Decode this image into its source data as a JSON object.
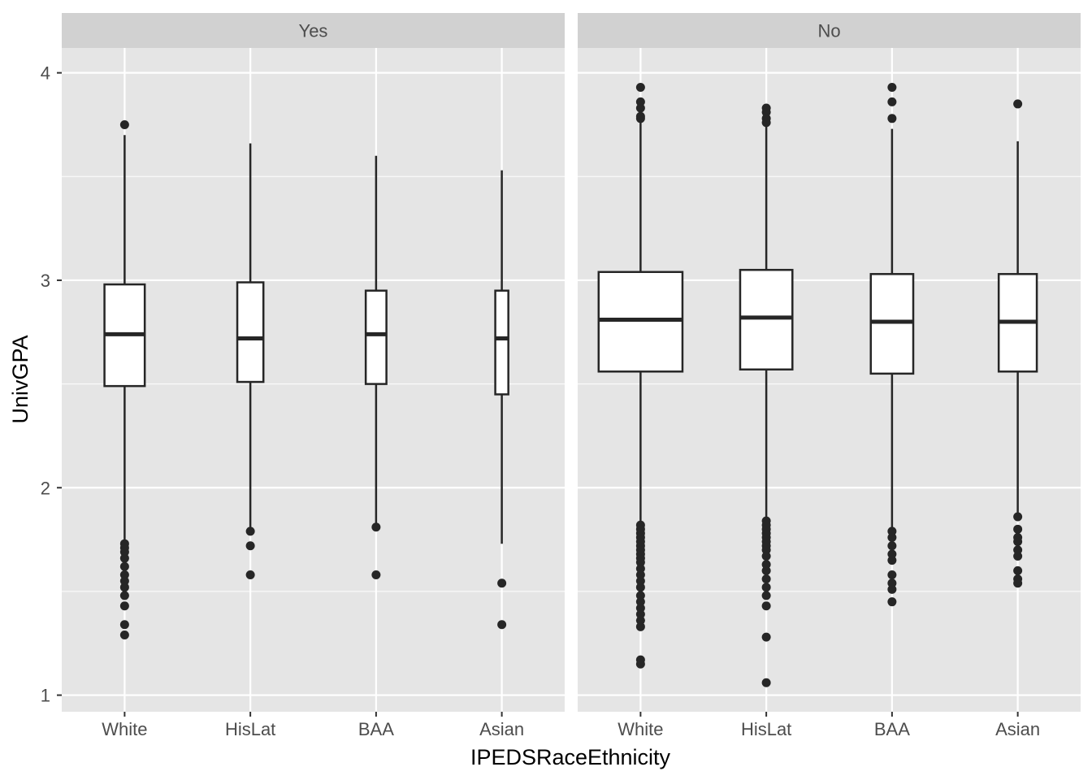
{
  "chart_data": {
    "type": "boxplot",
    "facet_variable_values": [
      "Yes",
      "No"
    ],
    "xlabel": "IPEDSRaceEthnicity",
    "ylabel": "UnivGPA",
    "categories": [
      "White",
      "HisLat",
      "BAA",
      "Asian"
    ],
    "ylim": [
      0.92,
      4.12
    ],
    "yticks": [
      1,
      2,
      3,
      4
    ],
    "grid": true,
    "colors": {
      "panel_background": "#e5e5e5",
      "strip_background": "#d1d1d1",
      "grid": "#ffffff",
      "box_fill": "#ffffff",
      "box_line": "#262626"
    },
    "panels": [
      {
        "label": "Yes",
        "boxes": [
          {
            "category": "White",
            "relative_width": 0.37,
            "whisker_low": 1.73,
            "q1": 2.49,
            "median": 2.74,
            "q3": 2.98,
            "whisker_high": 3.7,
            "outliers": [
              3.75,
              1.73,
              1.71,
              1.69,
              1.66,
              1.62,
              1.58,
              1.55,
              1.52,
              1.48,
              1.43,
              1.34,
              1.29
            ]
          },
          {
            "category": "HisLat",
            "relative_width": 0.24,
            "whisker_low": 1.8,
            "q1": 2.51,
            "median": 2.72,
            "q3": 2.99,
            "whisker_high": 3.66,
            "outliers": [
              1.79,
              1.72,
              1.58
            ]
          },
          {
            "category": "BAA",
            "relative_width": 0.19,
            "whisker_low": 1.83,
            "q1": 2.5,
            "median": 2.74,
            "q3": 2.95,
            "whisker_high": 3.6,
            "outliers": [
              1.81,
              1.58
            ]
          },
          {
            "category": "Asian",
            "relative_width": 0.12,
            "whisker_low": 1.73,
            "q1": 2.45,
            "median": 2.72,
            "q3": 2.95,
            "whisker_high": 3.53,
            "outliers": [
              1.54,
              1.34
            ]
          }
        ]
      },
      {
        "label": "No",
        "boxes": [
          {
            "category": "White",
            "relative_width": 0.77,
            "whisker_low": 1.83,
            "q1": 2.56,
            "median": 2.81,
            "q3": 3.04,
            "whisker_high": 3.76,
            "outliers": [
              3.93,
              3.86,
              3.83,
              3.79,
              3.78,
              1.82,
              1.8,
              1.78,
              1.76,
              1.74,
              1.72,
              1.7,
              1.68,
              1.66,
              1.64,
              1.61,
              1.58,
              1.55,
              1.52,
              1.48,
              1.45,
              1.42,
              1.39,
              1.36,
              1.33,
              1.17,
              1.15
            ]
          },
          {
            "category": "HisLat",
            "relative_width": 0.48,
            "whisker_low": 1.85,
            "q1": 2.57,
            "median": 2.82,
            "q3": 3.05,
            "whisker_high": 3.75,
            "outliers": [
              3.83,
              3.81,
              3.78,
              3.76,
              1.84,
              1.82,
              1.8,
              1.78,
              1.76,
              1.74,
              1.72,
              1.7,
              1.67,
              1.63,
              1.6,
              1.56,
              1.52,
              1.48,
              1.43,
              1.28,
              1.06
            ]
          },
          {
            "category": "BAA",
            "relative_width": 0.39,
            "whisker_low": 1.81,
            "q1": 2.55,
            "median": 2.8,
            "q3": 3.03,
            "whisker_high": 3.73,
            "outliers": [
              3.93,
              3.86,
              3.78,
              1.79,
              1.76,
              1.72,
              1.68,
              1.65,
              1.58,
              1.54,
              1.51,
              1.45
            ]
          },
          {
            "category": "Asian",
            "relative_width": 0.35,
            "whisker_low": 1.87,
            "q1": 2.56,
            "median": 2.8,
            "q3": 3.03,
            "whisker_high": 3.67,
            "outliers": [
              3.85,
              1.86,
              1.8,
              1.76,
              1.74,
              1.7,
              1.67,
              1.6,
              1.56,
              1.54
            ]
          }
        ]
      }
    ]
  }
}
